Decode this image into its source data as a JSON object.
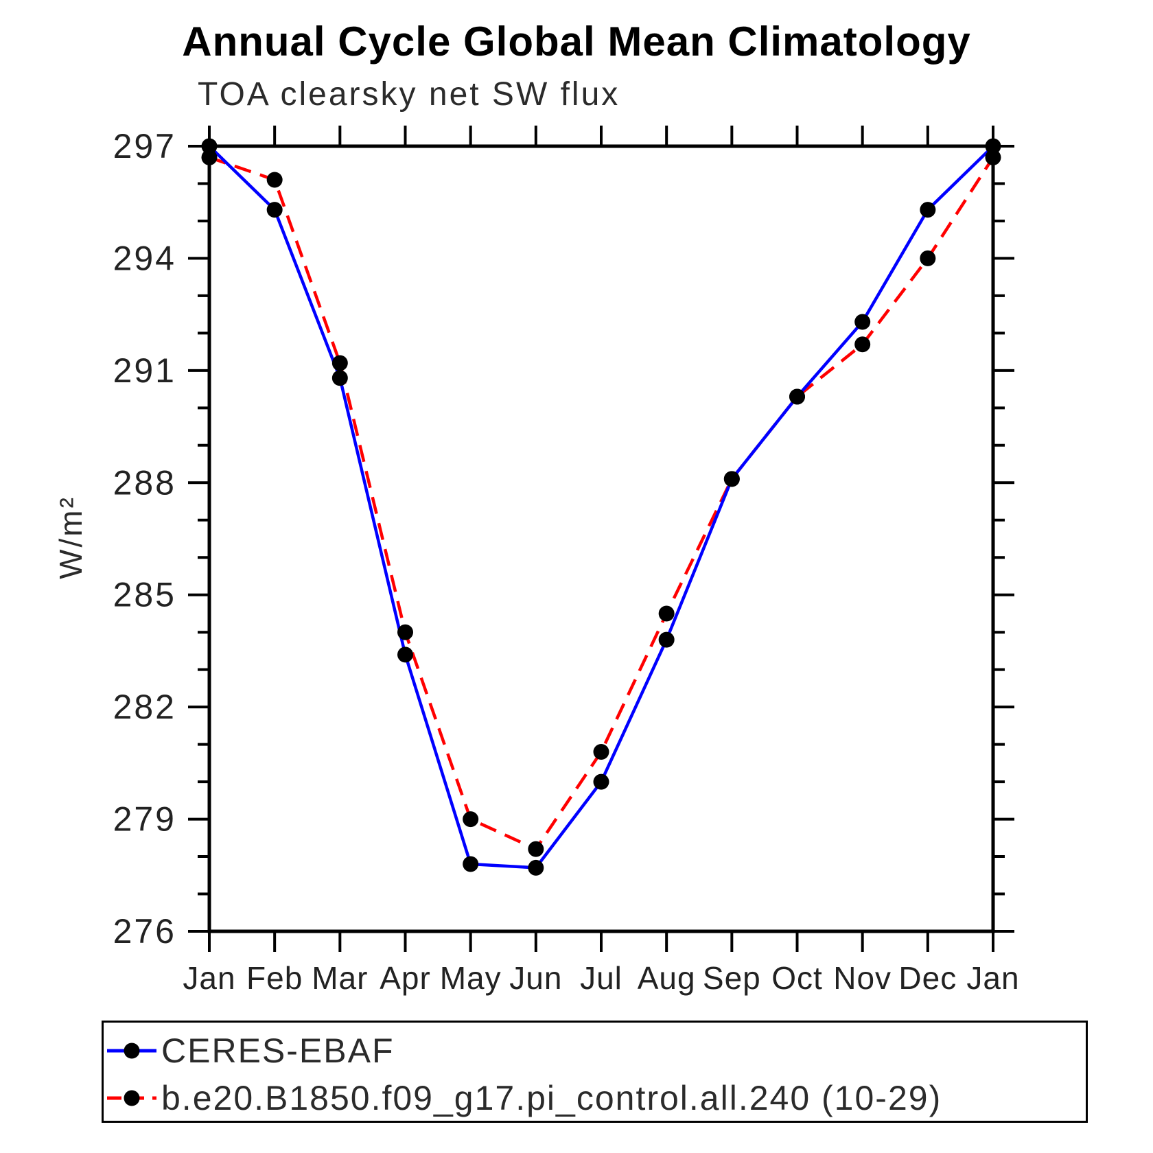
{
  "chart_data": {
    "type": "line",
    "title": "Annual Cycle Global Mean Climatology",
    "subtitle": "TOA clearsky net SW flux",
    "ylabel": "W/m²",
    "xlabel": "",
    "categories": [
      "Jan",
      "Feb",
      "Mar",
      "Apr",
      "May",
      "Jun",
      "Jul",
      "Aug",
      "Sep",
      "Oct",
      "Nov",
      "Dec",
      "Jan"
    ],
    "ylim": [
      276,
      297
    ],
    "y_ticks": [
      276,
      279,
      282,
      285,
      288,
      291,
      294,
      297
    ],
    "y_minor_tick_step": 1,
    "grid": false,
    "legend_position": "bottom-left-box",
    "series": [
      {
        "name": "CERES-EBAF",
        "color": "#0000ff",
        "line_style": "solid",
        "marker": "filled-circle",
        "marker_color": "#000000",
        "values": [
          297.0,
          295.3,
          290.8,
          283.4,
          277.8,
          277.7,
          280.0,
          283.8,
          288.1,
          290.3,
          292.3,
          295.3,
          297.0
        ]
      },
      {
        "name": "b.e20.B1850.f09_g17.pi_control.all.240 (10-29)",
        "color": "#ff0000",
        "line_style": "dashed",
        "marker": "filled-circle",
        "marker_color": "#000000",
        "values": [
          296.7,
          296.1,
          291.2,
          284.0,
          279.0,
          278.2,
          280.8,
          284.5,
          288.1,
          290.3,
          291.7,
          294.0,
          296.7
        ]
      }
    ]
  }
}
